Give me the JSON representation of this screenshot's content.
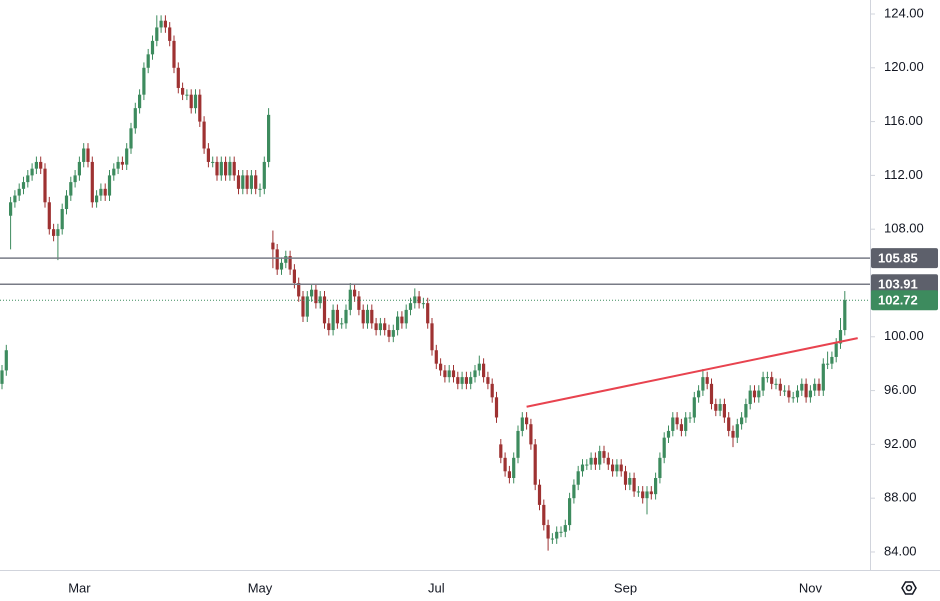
{
  "chart_data": {
    "type": "candlestick",
    "up_color": "#3d8b5e",
    "down_color": "#9e3232",
    "ylim": [
      82.66,
      125.04
    ],
    "yticks": [
      {
        "value": 84,
        "label": "84.00"
      },
      {
        "value": 88,
        "label": "88.00"
      },
      {
        "value": 92,
        "label": "92.00"
      },
      {
        "value": 96,
        "label": "96.00"
      },
      {
        "value": 100,
        "label": "100.00"
      },
      {
        "value": 104,
        "label": "104.00"
      },
      {
        "value": 108,
        "label": "108.00"
      },
      {
        "value": 112,
        "label": "112.00"
      },
      {
        "value": 116,
        "label": "116.00"
      },
      {
        "value": 120,
        "label": "120.00"
      },
      {
        "value": 124,
        "label": "124.00"
      }
    ],
    "categories": [
      null,
      null,
      null,
      null,
      null,
      null,
      null,
      null,
      null,
      null,
      null,
      null,
      null,
      null,
      null,
      null,
      null,
      null,
      "Mar",
      null,
      null,
      null,
      null,
      null,
      null,
      null,
      null,
      null,
      null,
      null,
      null,
      null,
      null,
      null,
      null,
      null,
      null,
      null,
      null,
      null,
      null,
      null,
      null,
      null,
      null,
      null,
      null,
      null,
      null,
      null,
      null,
      null,
      null,
      null,
      null,
      null,
      null,
      null,
      null,
      null,
      "May",
      null,
      null,
      null,
      null,
      null,
      null,
      null,
      null,
      null,
      null,
      null,
      null,
      null,
      null,
      null,
      null,
      null,
      null,
      null,
      null,
      null,
      null,
      null,
      null,
      null,
      null,
      null,
      null,
      null,
      null,
      null,
      null,
      null,
      null,
      null,
      null,
      null,
      null,
      null,
      null,
      "Jul",
      null,
      null,
      null,
      null,
      null,
      null,
      null,
      null,
      null,
      null,
      null,
      null,
      null,
      null,
      null,
      null,
      null,
      null,
      null,
      null,
      null,
      null,
      null,
      null,
      null,
      null,
      null,
      null,
      null,
      null,
      null,
      null,
      null,
      null,
      null,
      null,
      null,
      null,
      null,
      null,
      null,
      null,
      null,
      "Sep",
      null,
      null,
      null,
      null,
      null,
      null,
      null,
      null,
      null,
      null,
      null,
      null,
      null,
      null,
      null,
      null,
      null,
      null,
      null,
      null,
      null,
      null,
      null,
      null,
      null,
      null,
      null,
      null,
      null,
      null,
      null,
      null,
      null,
      null,
      null,
      null,
      null,
      null,
      null,
      null,
      null,
      null,
      "Nov",
      null,
      null,
      null,
      null,
      null,
      null,
      null,
      null
    ],
    "open": [
      96.5,
      97.5,
      109,
      110,
      110.5,
      111,
      111.5,
      112,
      112.5,
      113,
      112.5,
      110,
      108,
      107.5,
      108,
      109.5,
      110.5,
      111.5,
      112,
      113,
      114,
      113,
      110,
      110.5,
      111,
      110.5,
      112,
      112.5,
      113,
      112.8,
      114,
      115.5,
      117,
      118,
      120,
      121,
      122,
      123,
      123.5,
      123,
      122,
      120,
      118.5,
      118,
      118,
      117,
      118,
      116,
      114,
      113,
      113,
      112,
      113,
      112,
      113,
      112,
      111,
      112,
      111,
      112,
      111,
      111,
      113,
      107,
      106.5,
      105,
      105.5,
      106,
      105,
      104,
      103,
      101.5,
      103,
      103.5,
      102.5,
      103,
      101,
      100.5,
      102,
      101,
      101,
      102,
      103.5,
      103,
      102,
      101,
      102,
      101,
      100.5,
      101,
      100.5,
      100,
      100.5,
      101.5,
      101,
      102,
      102.5,
      103,
      102.5,
      102.5,
      101,
      99,
      98,
      97.5,
      97,
      97.5,
      97,
      96.5,
      97,
      96.5,
      97,
      97.5,
      98,
      97,
      96.5,
      95.5,
      92,
      91,
      90,
      89.5,
      91,
      93,
      94,
      93.5,
      92,
      89,
      87.5,
      86,
      85,
      85,
      85.5,
      85.5,
      86,
      88,
      89,
      90,
      90.5,
      90.5,
      91,
      90.5,
      91.5,
      91,
      90.5,
      90,
      90.5,
      90,
      89,
      89.5,
      88.5,
      88.5,
      88,
      88.5,
      88.3,
      89.5,
      91,
      92.5,
      93,
      94,
      93.5,
      93,
      94,
      94,
      95.5,
      96,
      97,
      96.5,
      95,
      94.5,
      95,
      94,
      93,
      92.5,
      93.5,
      94,
      95,
      96,
      95.5,
      96,
      97,
      97,
      96.5,
      96.5,
      96,
      96,
      95.5,
      95.5,
      96,
      96.5,
      95.5,
      96,
      96.5,
      96,
      98,
      98,
      98.5,
      99.5,
      100.5
    ],
    "high": [
      97.9,
      99.4,
      110.4,
      110.9,
      111.4,
      111.9,
      112.4,
      112.9,
      113.4,
      113.4,
      112.9,
      110.4,
      108.4,
      108.4,
      109.9,
      110.9,
      111.9,
      112.4,
      113.4,
      114.4,
      114.4,
      113.4,
      110.9,
      111.4,
      111.4,
      112.4,
      112.9,
      113.4,
      113.4,
      114.4,
      115.9,
      117.4,
      118.4,
      120.4,
      121.4,
      122.4,
      123.9,
      123.9,
      123.9,
      123.4,
      122.4,
      120.4,
      118.9,
      118.4,
      118.4,
      118.4,
      118.4,
      116.4,
      114.4,
      113.4,
      113.4,
      113.4,
      113.4,
      113.4,
      113.4,
      112.4,
      112.4,
      112.4,
      112.4,
      112.4,
      111.4,
      113.4,
      117,
      107.9,
      106.9,
      105.9,
      106.4,
      106.4,
      105.4,
      104.4,
      103.4,
      103.4,
      103.9,
      103.9,
      103.4,
      103.4,
      101.4,
      102.4,
      102.4,
      101.4,
      102.4,
      104,
      103.9,
      103.4,
      102.4,
      102.4,
      102.4,
      101.4,
      101.4,
      101.4,
      100.9,
      100.9,
      101.9,
      101.9,
      102.4,
      102.9,
      103.6,
      103.4,
      102.9,
      102.9,
      101.4,
      99.4,
      98.4,
      97.9,
      97.9,
      97.9,
      97.4,
      97.4,
      97.4,
      97.4,
      97.9,
      98.6,
      98.4,
      97.4,
      96.9,
      95.9,
      92.4,
      91.4,
      90.4,
      91.4,
      93.4,
      94.4,
      94.4,
      93.9,
      92.4,
      89.4,
      87.9,
      86.4,
      85.4,
      85.9,
      85.9,
      86.4,
      88.4,
      89.4,
      90.4,
      90.9,
      90.9,
      91.4,
      91.4,
      91.9,
      91.9,
      91.4,
      90.9,
      90.9,
      90.9,
      90.4,
      89.9,
      89.9,
      88.9,
      88.9,
      88.9,
      88.9,
      89.9,
      91.4,
      92.9,
      93.4,
      94.4,
      94.4,
      93.9,
      94.4,
      94.4,
      95.9,
      96.4,
      97.6,
      97.4,
      96.9,
      95.4,
      95.4,
      95.4,
      94.4,
      93.4,
      93.9,
      94.4,
      95.4,
      96.4,
      96.4,
      96.4,
      97.4,
      97.4,
      97.4,
      96.9,
      96.9,
      96.4,
      96.4,
      95.9,
      96.4,
      96.9,
      96.9,
      96.4,
      96.9,
      96.9,
      98.4,
      98.9,
      98.9,
      99.9,
      101.4,
      103.4
    ],
    "low": [
      96.1,
      97.1,
      106.5,
      109.6,
      110.1,
      110.6,
      111.1,
      111.6,
      112.1,
      112.1,
      109.6,
      107.6,
      107.1,
      105.7,
      107.6,
      109.1,
      110.1,
      111.1,
      111.6,
      112.6,
      112.6,
      109.6,
      109.6,
      110.1,
      110.1,
      110.1,
      111.6,
      112.1,
      112.4,
      112.4,
      113.6,
      115.1,
      116.6,
      117.6,
      119.6,
      120.6,
      121.6,
      122.6,
      122.6,
      121.6,
      119.6,
      118.1,
      117.6,
      117.6,
      116.6,
      116.6,
      115.6,
      113.6,
      112.6,
      112.6,
      111.6,
      111.6,
      111.6,
      111.6,
      111.6,
      110.6,
      110.6,
      110.6,
      110.6,
      110.6,
      110.4,
      110.6,
      112.6,
      105.1,
      104.6,
      104.6,
      105.1,
      104.6,
      103.6,
      102.6,
      101.1,
      101.1,
      102.6,
      102.1,
      102.1,
      100.6,
      100.1,
      100.1,
      100.6,
      100.6,
      100.6,
      101.6,
      102.6,
      101.6,
      100.6,
      100.6,
      100.6,
      100.1,
      100.1,
      100.1,
      99.6,
      99.6,
      100.1,
      100.6,
      100.6,
      101.6,
      102.1,
      102.1,
      102.1,
      100.6,
      98.6,
      97.6,
      97.1,
      96.6,
      96.6,
      96.6,
      96.1,
      96.1,
      96.1,
      96.1,
      96.6,
      97.1,
      96.6,
      96.1,
      95.1,
      93.6,
      90.6,
      89.6,
      89.1,
      89.1,
      90.6,
      92.6,
      93.1,
      91.6,
      88.6,
      87.1,
      85.6,
      84.1,
      84.6,
      84.6,
      85.1,
      85.1,
      85.6,
      87.6,
      88.6,
      89.6,
      90.1,
      90.1,
      90.1,
      90.1,
      90.6,
      90.1,
      89.6,
      89.6,
      89.6,
      88.6,
      88.6,
      88.1,
      88.1,
      87.6,
      86.8,
      87.9,
      87.9,
      89.1,
      90.6,
      92.1,
      92.6,
      93.1,
      92.6,
      92.6,
      93.6,
      93.6,
      95.1,
      95.6,
      96.1,
      94.6,
      94.1,
      94.1,
      93.6,
      92.6,
      91.8,
      92.1,
      93.1,
      93.6,
      94.6,
      95.1,
      95.1,
      95.6,
      96.6,
      96.1,
      96.1,
      95.6,
      95.6,
      95.1,
      95.1,
      95.1,
      95.6,
      95.1,
      95.1,
      95.6,
      95.6,
      95.6,
      97.6,
      97.6,
      98.1,
      99.1,
      100.1
    ],
    "close": [
      97.5,
      99,
      110,
      110.5,
      111,
      111.5,
      112,
      112.5,
      113,
      112.5,
      110,
      108,
      107.5,
      108,
      109.5,
      110.5,
      111.5,
      112,
      113,
      114,
      113,
      110,
      110.5,
      111,
      110.5,
      112,
      112.5,
      113,
      112.8,
      114,
      115.5,
      117,
      118,
      120,
      121,
      122,
      123,
      123.5,
      123,
      122,
      120,
      118.5,
      118,
      118,
      117,
      118,
      116,
      114,
      113,
      113,
      112,
      113,
      112,
      113,
      112,
      111,
      112,
      111,
      112,
      111,
      111,
      113,
      116.5,
      106.5,
      105,
      105.5,
      106,
      105,
      104,
      103,
      101.5,
      103,
      103.5,
      102.5,
      103,
      101,
      100.5,
      102,
      101,
      101,
      102,
      103.5,
      103,
      102,
      101,
      102,
      101,
      100.5,
      101,
      100.5,
      100,
      100.5,
      101.5,
      101,
      102,
      102.5,
      103,
      102.5,
      102.5,
      101,
      99,
      98,
      97.5,
      97,
      97.5,
      97,
      96.5,
      97,
      96.5,
      97,
      97.5,
      98,
      97,
      96.5,
      95.5,
      94,
      91,
      90,
      89.5,
      91,
      93,
      94,
      93.5,
      92,
      89,
      87.5,
      86,
      85,
      85,
      85.5,
      85.5,
      86,
      88,
      89,
      90,
      90.5,
      90.5,
      91,
      90.5,
      91.5,
      91,
      90.5,
      90,
      90.5,
      90,
      89,
      89.5,
      88.5,
      88.5,
      88,
      88.5,
      88.3,
      89.5,
      91,
      92.5,
      93,
      94,
      93.5,
      93,
      94,
      94,
      95.5,
      96,
      97,
      96.5,
      95,
      94.5,
      95,
      94,
      93,
      92.5,
      93.5,
      94,
      95,
      96,
      95.5,
      96,
      97,
      97,
      96.5,
      96.5,
      96,
      96,
      95.5,
      95.5,
      96,
      96.5,
      95.5,
      96,
      96.5,
      96,
      98,
      98,
      98.5,
      99.5,
      100.5,
      102.72
    ],
    "levels": [
      105.85,
      103.91
    ],
    "level_color": "#787b86",
    "trendline": {
      "x": [
        122,
        199
      ],
      "y": [
        94.8,
        99.9
      ],
      "color": "#e8434f"
    }
  }
}
